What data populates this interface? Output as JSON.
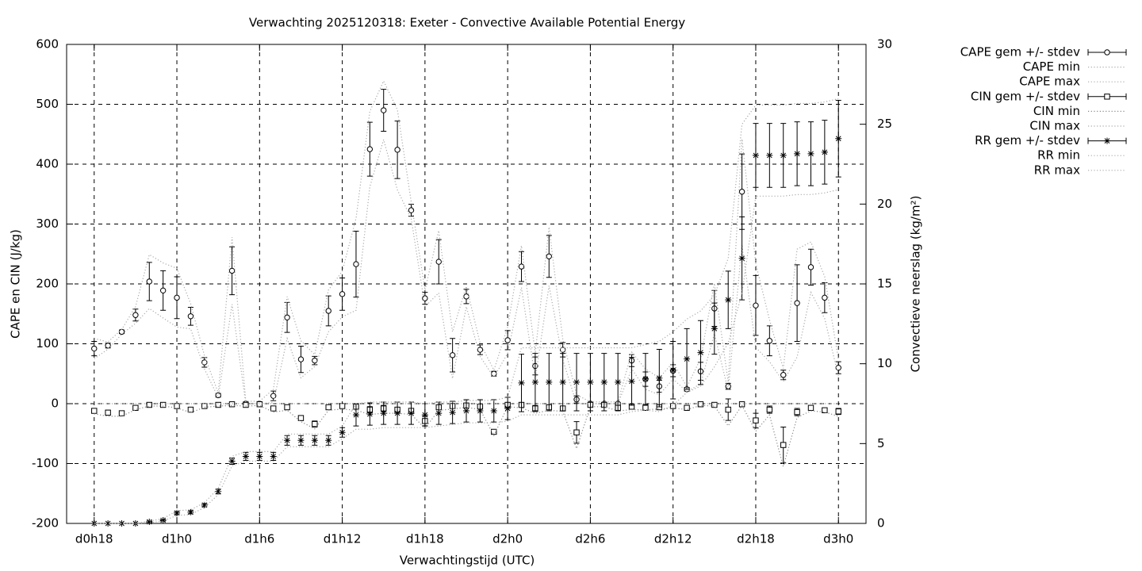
{
  "chart_data": {
    "type": "errorbar-line",
    "title": "Verwachting 2025120318: Exeter - Convective Available Potential Energy",
    "xlabel": "Verwachtingstijd (UTC)",
    "ylabel": "CAPE en CIN (J/kg)",
    "y2label": "Convectieve neerslag (kg/m²)",
    "categories": [
      "d0h18",
      null,
      null,
      null,
      null,
      null,
      "d1h0",
      null,
      null,
      null,
      null,
      null,
      "d1h6",
      null,
      null,
      null,
      null,
      null,
      "d1h12",
      null,
      null,
      null,
      null,
      null,
      "d1h18",
      null,
      null,
      null,
      null,
      null,
      "d2h0",
      null,
      null,
      null,
      null,
      null,
      "d2h6",
      null,
      null,
      null,
      null,
      null,
      "d2h12",
      null,
      null,
      null,
      null,
      null,
      "d2h18",
      null,
      null,
      null,
      null,
      null,
      "d3h0"
    ],
    "ylim": [
      -200,
      600
    ],
    "yticks": [
      -200,
      -100,
      0,
      100,
      200,
      300,
      400,
      500,
      600
    ],
    "y2lim": [
      0,
      30
    ],
    "y2ticks": [
      0,
      5,
      10,
      15,
      20,
      25,
      30
    ],
    "grid": true,
    "legend": "right",
    "series": [
      {
        "name": "CAPE gem +/- stdev",
        "marker": "circle",
        "color": "#000000",
        "values": [
          92,
          97,
          120,
          148,
          204,
          189,
          177,
          146,
          69,
          14,
          222,
          0,
          0,
          13,
          144,
          74,
          72,
          155,
          183,
          233,
          425,
          490,
          424,
          323,
          176,
          237,
          81,
          179,
          90,
          50,
          106,
          229,
          63,
          246,
          90,
          7,
          0,
          0,
          0,
          72,
          41,
          29,
          55,
          24,
          54,
          159,
          29,
          354,
          164,
          105,
          48,
          168,
          228,
          177,
          60
        ],
        "errors": [
          12,
          4,
          3,
          10,
          32,
          33,
          35,
          15,
          8,
          3,
          40,
          3,
          3,
          8,
          25,
          22,
          7,
          25,
          27,
          55,
          45,
          35,
          48,
          10,
          10,
          37,
          28,
          12,
          8,
          4,
          16,
          25,
          15,
          35,
          12,
          6,
          2,
          2,
          2,
          10,
          12,
          10,
          10,
          3,
          15,
          30,
          5,
          63,
          50,
          25,
          8,
          64,
          30,
          25,
          10
        ]
      },
      {
        "name": "CAPE min",
        "style": "dotted",
        "color": "#aaaaaa",
        "values": [
          75,
          91,
          116,
          134,
          159,
          143,
          128,
          125,
          58,
          10,
          166,
          0,
          0,
          2,
          109,
          43,
          62,
          120,
          145,
          156,
          362,
          441,
          357,
          309,
          162,
          185,
          42,
          162,
          79,
          44,
          84,
          194,
          42,
          197,
          73,
          0,
          0,
          0,
          0,
          58,
          24,
          15,
          41,
          20,
          33,
          117,
          22,
          266,
          94,
          70,
          37,
          78,
          186,
          142,
          46
        ]
      },
      {
        "name": "CAPE max",
        "style": "dotted",
        "color": "#aaaaaa",
        "values": [
          109,
          103,
          124,
          162,
          249,
          235,
          226,
          167,
          80,
          18,
          278,
          4,
          4,
          24,
          179,
          105,
          82,
          190,
          221,
          310,
          488,
          539,
          491,
          337,
          190,
          289,
          120,
          196,
          101,
          56,
          128,
          264,
          84,
          295,
          107,
          15,
          3,
          3,
          3,
          86,
          58,
          43,
          69,
          28,
          75,
          201,
          36,
          442,
          234,
          140,
          59,
          258,
          270,
          212,
          74
        ]
      },
      {
        "name": "CIN gem +/- stdev",
        "marker": "square",
        "color": "#000000",
        "values": [
          -12,
          -15,
          -16,
          -7,
          -2,
          -2,
          -4,
          -10,
          -4,
          -2,
          -1,
          -2,
          -1,
          -8,
          -6,
          -24,
          -34,
          -6,
          -4,
          -5,
          -10,
          -8,
          -10,
          -12,
          -29,
          -6,
          -4,
          -3,
          -5,
          -47,
          -2,
          -2,
          -8,
          -6,
          -8,
          -48,
          -2,
          -2,
          -7,
          -5,
          -7,
          -6,
          -4,
          -7,
          -1,
          -2,
          -10,
          -1,
          -28,
          -10,
          -69,
          -14,
          -7,
          -11,
          -13
        ],
        "errors": [
          3,
          4,
          3,
          2,
          1,
          1,
          2,
          3,
          1,
          1,
          1,
          1,
          1,
          4,
          3,
          4,
          5,
          3,
          3,
          4,
          5,
          5,
          4,
          4,
          8,
          3,
          3,
          2,
          3,
          4,
          2,
          3,
          5,
          3,
          3,
          18,
          2,
          2,
          3,
          3,
          2,
          2,
          2,
          2,
          1,
          1,
          18,
          1,
          12,
          6,
          30,
          6,
          3,
          2,
          5
        ]
      },
      {
        "name": "CIN min",
        "style": "dotted",
        "color": "#888888",
        "values": [
          -17,
          -21,
          -21,
          -10,
          -4,
          -4,
          -7,
          -15,
          -6,
          -4,
          -3,
          -4,
          -3,
          -14,
          -11,
          -30,
          -42,
          -11,
          -9,
          -11,
          -18,
          -16,
          -16,
          -18,
          -41,
          -11,
          -9,
          -6,
          -10,
          -53,
          -5,
          -7,
          -16,
          -11,
          -13,
          -75,
          -5,
          -5,
          -12,
          -10,
          -10,
          -9,
          -7,
          -10,
          -3,
          -4,
          -37,
          -3,
          -46,
          -19,
          -105,
          -23,
          -12,
          -14,
          -21
        ]
      },
      {
        "name": "CIN max",
        "style": "dotted",
        "color": "#aaaaaa",
        "values": [
          0,
          0,
          0,
          0,
          0,
          0,
          0,
          0,
          0,
          0,
          0,
          0,
          0,
          0,
          0,
          0,
          0,
          0,
          0,
          0,
          0,
          0,
          0,
          0,
          0,
          0,
          0,
          0,
          0,
          0,
          0,
          0,
          0,
          0,
          0,
          0,
          0,
          0,
          0,
          0,
          0,
          0,
          0,
          0,
          0,
          0,
          0,
          0,
          0,
          0,
          0,
          0,
          0,
          0,
          0
        ]
      },
      {
        "name": "RR gem +/- stdev",
        "marker": "star",
        "axis": "y2",
        "color": "#000000",
        "values": [
          0,
          0,
          0,
          0,
          0.1,
          0.2,
          0.65,
          0.7,
          1.15,
          2.0,
          3.9,
          4.2,
          4.2,
          4.2,
          5.2,
          5.2,
          5.2,
          5.2,
          5.7,
          6.8,
          6.85,
          6.9,
          6.9,
          6.9,
          6.8,
          6.9,
          6.95,
          7.05,
          7.05,
          7.05,
          7.2,
          8.8,
          8.85,
          8.85,
          8.85,
          8.85,
          8.85,
          8.85,
          8.85,
          8.9,
          9.05,
          9.1,
          9.6,
          10.3,
          10.7,
          12.2,
          14.0,
          16.6,
          23.05,
          23.05,
          23.05,
          23.15,
          23.15,
          23.25,
          24.1
        ],
        "errors": [
          0,
          0,
          0,
          0,
          0.05,
          0.05,
          0.1,
          0.1,
          0.1,
          0.15,
          0.2,
          0.25,
          0.25,
          0.25,
          0.3,
          0.3,
          0.3,
          0.3,
          0.3,
          0.7,
          0.7,
          0.7,
          0.7,
          0.7,
          0.7,
          0.7,
          0.7,
          0.7,
          0.7,
          0.7,
          0.7,
          1.8,
          1.8,
          1.8,
          1.8,
          1.8,
          1.8,
          1.8,
          1.8,
          1.5,
          1.6,
          1.8,
          1.8,
          1.9,
          2.0,
          1.6,
          1.8,
          2.6,
          2.0,
          2.0,
          2.0,
          2.0,
          2.0,
          2.0,
          2.4
        ]
      },
      {
        "name": "RR min",
        "style": "dotted",
        "axis": "y2",
        "color": "#aaaaaa",
        "values": [
          0,
          0,
          0,
          0,
          0.05,
          0.15,
          0.5,
          0.55,
          1.0,
          1.8,
          3.6,
          3.9,
          3.9,
          3.9,
          4.8,
          4.8,
          4.8,
          4.8,
          5.3,
          5.9,
          5.9,
          6.0,
          6.0,
          6.0,
          6.0,
          6.1,
          6.2,
          6.3,
          6.3,
          6.3,
          6.4,
          6.8,
          6.8,
          6.8,
          6.8,
          6.8,
          6.8,
          6.8,
          6.8,
          7.0,
          7.1,
          7.0,
          7.4,
          8.2,
          8.6,
          9.8,
          11.3,
          14.4,
          20.5,
          20.5,
          20.5,
          20.6,
          20.6,
          20.7,
          20.9
        ]
      },
      {
        "name": "RR max",
        "style": "dotted",
        "axis": "y2",
        "color": "#aaaaaa",
        "values": [
          0,
          0,
          0,
          0,
          0.15,
          0.3,
          0.8,
          0.85,
          1.3,
          2.2,
          4.2,
          4.5,
          4.5,
          4.5,
          5.6,
          5.6,
          5.6,
          5.6,
          6.1,
          7.5,
          7.6,
          7.6,
          7.6,
          7.6,
          7.5,
          7.6,
          7.6,
          7.7,
          7.7,
          7.7,
          7.9,
          11,
          11,
          11,
          11,
          11,
          11,
          11,
          11,
          11,
          11.2,
          11.4,
          12,
          12.8,
          13.3,
          14.3,
          16.6,
          25,
          26.2,
          26.2,
          26.2,
          26.3,
          26.3,
          26.4,
          26.6
        ]
      }
    ]
  }
}
